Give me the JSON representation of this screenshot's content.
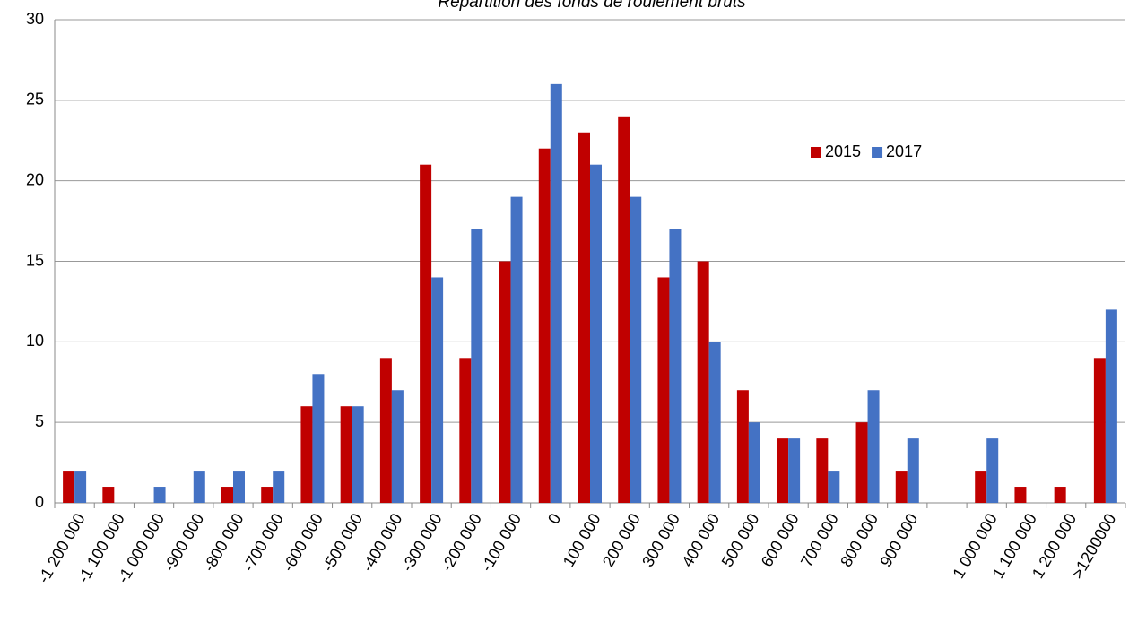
{
  "chart_data": {
    "type": "bar",
    "title": "Répartition des fonds de roulement bruts",
    "categories": [
      "-1 200 000",
      "-1 100 000",
      "-1 000 000",
      "-900 000",
      "-800 000",
      "-700 000",
      "-600 000",
      "-500 000",
      "-400 000",
      "-300 000",
      "-200 000",
      "-100 000",
      "0",
      "100 000",
      "200 000",
      "300 000",
      "400 000",
      "500 000",
      "600 000",
      "700 000",
      "800 000",
      "900 000",
      null,
      "1 000 000",
      "1 100 000",
      "1 200 000",
      ">1200000"
    ],
    "series": [
      {
        "name": "2015",
        "color": "#c00000",
        "values": [
          2,
          1,
          0,
          0,
          1,
          1,
          6,
          6,
          9,
          21,
          9,
          15,
          22,
          23,
          24,
          14,
          15,
          7,
          4,
          4,
          5,
          2,
          null,
          2,
          1,
          1,
          9
        ]
      },
      {
        "name": "2017",
        "color": "#4472c4",
        "values": [
          2,
          0,
          1,
          2,
          2,
          2,
          8,
          6,
          7,
          14,
          17,
          19,
          26,
          21,
          19,
          17,
          10,
          5,
          4,
          2,
          7,
          4,
          null,
          4,
          0,
          0,
          12
        ]
      }
    ],
    "ylim": [
      0,
      30
    ],
    "yticks": [
      0,
      5,
      10,
      15,
      20,
      25,
      30
    ],
    "grid": true,
    "legend": "upper right"
  }
}
